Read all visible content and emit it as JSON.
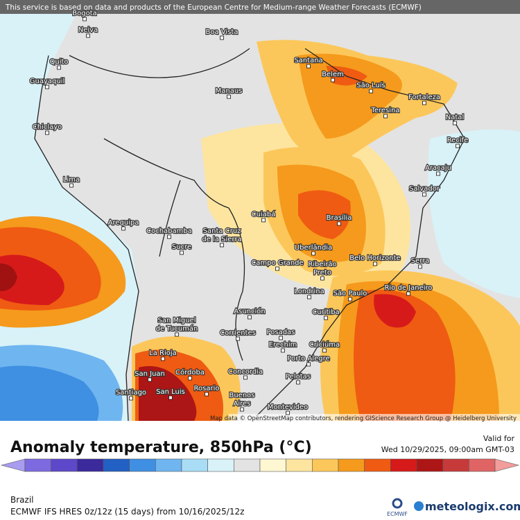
{
  "header": {
    "notice": "This service is based on data and products of the European Centre for Medium-range Weather Forecasts (ECMWF)"
  },
  "map": {
    "cities": [
      [
        "Bogota"
      ],
      [
        "Neiva"
      ],
      [
        "Boa Vista"
      ],
      [
        "Quito"
      ],
      [
        "Guayaquil"
      ],
      [
        "Santana"
      ],
      [
        "Belem"
      ],
      [
        "São Luís"
      ],
      [
        "Manaus"
      ],
      [
        "Fortaleza"
      ],
      [
        "Teresina"
      ],
      [
        "Natal"
      ],
      [
        "Chiclayo"
      ],
      [
        "Recife"
      ],
      [
        "Aracaju"
      ],
      [
        "Lima"
      ],
      [
        "Salvador"
      ],
      [
        "Cuiabá"
      ],
      [
        "Brasília"
      ],
      [
        "Arequipa"
      ],
      [
        "Cochabamba"
      ],
      [
        "Santa Cruz",
        "de la Sierra"
      ],
      [
        "Sucre"
      ],
      [
        "Uberlândia"
      ],
      [
        "Belo Horizonte"
      ],
      [
        "Serra"
      ],
      [
        "Campo Grande"
      ],
      [
        "Ribeirão",
        "Preto"
      ],
      [
        "Rio de Janeiro"
      ],
      [
        "Londrina"
      ],
      [
        "São Paulo"
      ],
      [
        "Asunción"
      ],
      [
        "San Miguel",
        "de Tucumán"
      ],
      [
        "Curitiba"
      ],
      [
        "Corrientes"
      ],
      [
        "Posadas"
      ],
      [
        "Erechim"
      ],
      [
        "Criciúma"
      ],
      [
        "La Rioja"
      ],
      [
        "Porto Alegre"
      ],
      [
        "San Juan"
      ],
      [
        "Córdoba"
      ],
      [
        "Concordia"
      ],
      [
        "Pelotas"
      ],
      [
        "Rosario"
      ],
      [
        "San Luis"
      ],
      [
        "Santiago"
      ],
      [
        "Buenos",
        "Aires"
      ],
      [
        "Montevideo"
      ]
    ],
    "attribution": "Map data © OpenStreetMap contributors, rendering GIScience Research Group @ Heidelberg University"
  },
  "legend": {
    "title": "Anomaly temperature, 850hPa (°C)",
    "valid_label": "Valid for",
    "valid_time": "Wed 10/29/2025, 09:00am GMT-03",
    "colors": [
      "#a89cf0",
      "#7d6ae0",
      "#5d48c9",
      "#3a2a9c",
      "#2360c4",
      "#3f8fe2",
      "#6fb5f0",
      "#a9ddf5",
      "#d8f2f8",
      "#e3e3e3",
      "#fff7d2",
      "#fde5a0",
      "#fcc75a",
      "#f59a1c",
      "#ef5b12",
      "#d61a1a",
      "#ad1616",
      "#c73a3a",
      "#e06464",
      "#f29c9c"
    ]
  },
  "footer": {
    "region": "Brazil",
    "model": "ECMWF IFS HRES 0z/12z (15 days) from 10/16/2025/12z",
    "logo": "ECMWF",
    "brand": "meteologix.com"
  }
}
